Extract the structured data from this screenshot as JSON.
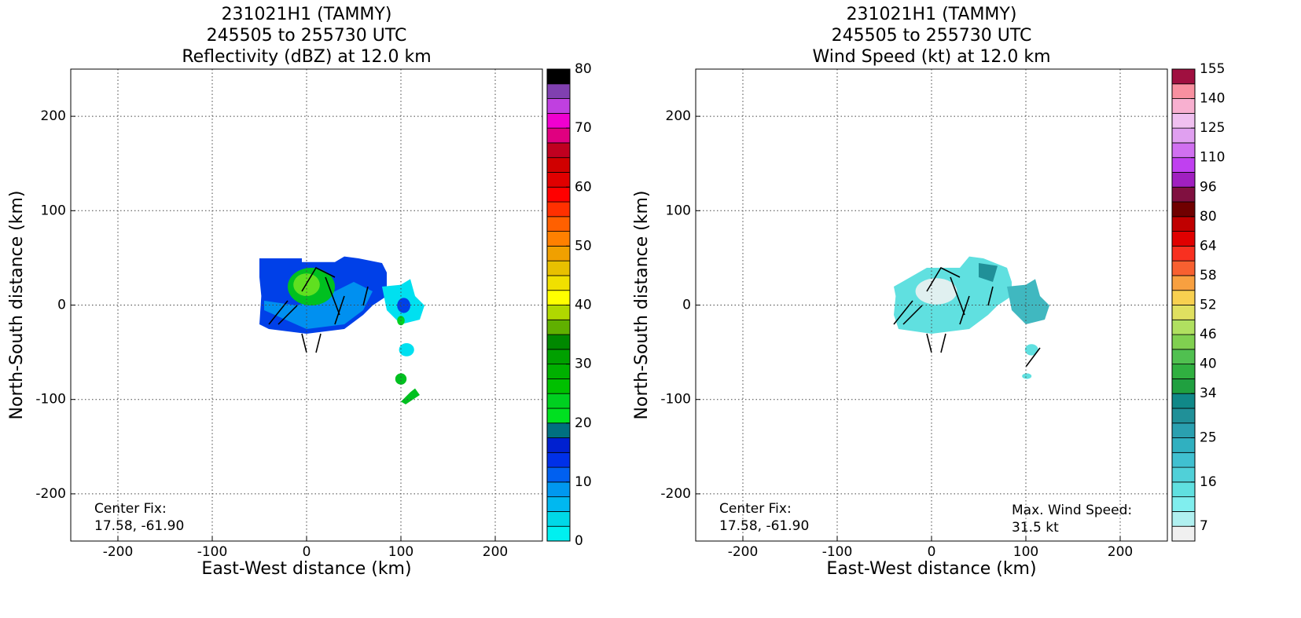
{
  "chart_data": [
    {
      "type": "radar-map",
      "title": [
        "231021H1 (TAMMY)",
        "245505 to 255730 UTC",
        "Reflectivity (dBZ) at 12.0 km"
      ],
      "xlabel": "East-West distance (km)",
      "ylabel": "North-South distance (km)",
      "xlim": [
        -250,
        250
      ],
      "ylim": [
        -250,
        250
      ],
      "xticks": [
        -200,
        -100,
        0,
        100,
        200
      ],
      "yticks": [
        -200,
        -100,
        0,
        100,
        200
      ],
      "grid": true,
      "annotations": [
        {
          "lines": [
            "Center Fix:",
            "17.58, -61.90"
          ],
          "corner": "lower left"
        }
      ],
      "colorbar": {
        "levels": [
          0,
          2.5,
          5,
          7.5,
          10,
          12.5,
          15,
          17.5,
          20,
          22.5,
          25,
          27.5,
          30,
          32.5,
          35,
          37.5,
          40,
          42.5,
          45,
          47.5,
          50,
          52.5,
          55,
          57.5,
          60,
          62.5,
          65,
          67.5,
          70,
          72.5,
          75,
          77.5,
          80
        ],
        "colors": [
          "#00f0f0",
          "#00d8e8",
          "#00b8f0",
          "#0098f0",
          "#0060f0",
          "#0030e8",
          "#0020d0",
          "#007080",
          "#00e020",
          "#00d020",
          "#00c000",
          "#00b000",
          "#00a000",
          "#008800",
          "#60b000",
          "#b0d800",
          "#ffff00",
          "#f0e000",
          "#e8c000",
          "#f0a000",
          "#ff8000",
          "#ff6000",
          "#ff3000",
          "#ff0000",
          "#e00000",
          "#d00000",
          "#c00020",
          "#e00080",
          "#f000d0",
          "#c040e0",
          "#8040b0",
          "#000000"
        ],
        "ticks": [
          0,
          10,
          20,
          30,
          40,
          50,
          60,
          70,
          80
        ]
      }
    },
    {
      "type": "radar-map",
      "title": [
        "231021H1 (TAMMY)",
        "245505 to 255730 UTC",
        "Wind Speed (kt) at 12.0 km"
      ],
      "xlabel": "East-West distance (km)",
      "ylabel": "North-South distance (km)",
      "xlim": [
        -250,
        250
      ],
      "ylim": [
        -250,
        250
      ],
      "xticks": [
        -200,
        -100,
        0,
        100,
        200
      ],
      "yticks": [
        -200,
        -100,
        0,
        100,
        200
      ],
      "grid": true,
      "annotations": [
        {
          "lines": [
            "Center Fix:",
            "17.58, -61.90"
          ],
          "corner": "lower left"
        },
        {
          "lines": [
            "Max. Wind Speed:",
            "31.5 kt"
          ],
          "corner": "lower right"
        }
      ],
      "colorbar": {
        "levels": [
          4,
          7,
          10,
          13,
          16,
          19,
          22,
          25,
          28,
          31,
          34,
          37,
          40,
          43,
          46,
          49,
          52,
          55,
          58,
          61,
          64,
          72,
          80,
          88,
          96,
          103,
          110,
          118,
          125,
          133,
          140,
          148,
          155
        ],
        "colors": [
          "#f0f0f0",
          "#b0f0f0",
          "#80eeee",
          "#60e0e0",
          "#50d0d8",
          "#40c0d0",
          "#30b0c0",
          "#2aa0b0",
          "#209098",
          "#108888",
          "#20a040",
          "#30b040",
          "#50c050",
          "#80d050",
          "#b0e060",
          "#e0e060",
          "#f8d050",
          "#f8a040",
          "#f86030",
          "#f83020",
          "#e00000",
          "#c00000",
          "#700000",
          "#801040",
          "#a020c0",
          "#c040f0",
          "#d070f0",
          "#e0a0f0",
          "#f0c0f0",
          "#f8b0d0",
          "#f890a0",
          "#a01040"
        ],
        "ticks": [
          7,
          16,
          25,
          34,
          40,
          46,
          52,
          58,
          64,
          80,
          96,
          110,
          125,
          140,
          155
        ]
      }
    }
  ]
}
